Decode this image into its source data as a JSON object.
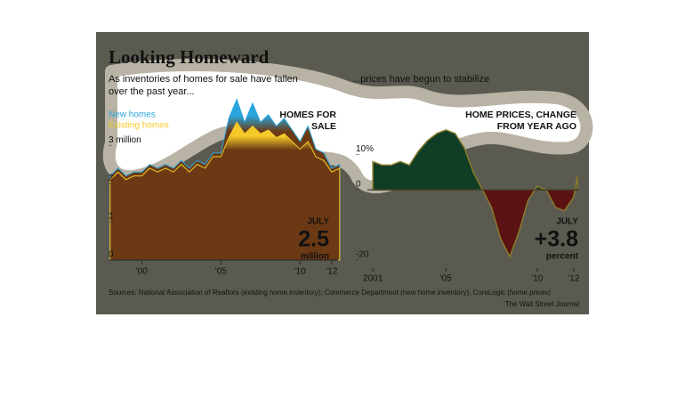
{
  "header": {
    "title": "Looking Homeward",
    "subtitle_left": [
      "As inventories of homes for sale have fallen",
      "over the past year..."
    ],
    "subtitle_right": "...prices have begun to stabilize"
  },
  "chart_data": [
    {
      "type": "area",
      "title_lines": [
        "HOMES FOR",
        "SALE"
      ],
      "x": [
        1998,
        1998.5,
        1999,
        1999.5,
        2000,
        2000.5,
        2001,
        2001.5,
        2002,
        2002.5,
        2003,
        2003.5,
        2004,
        2004.5,
        2005,
        2005.5,
        2006,
        2006.5,
        2007,
        2007.5,
        2008,
        2008.5,
        2009,
        2009.5,
        2010,
        2010.5,
        2011,
        2011.5,
        2012,
        2012.5
      ],
      "series": [
        {
          "name": "New homes",
          "color": "#2aa6de",
          "values": [
            2.2,
            2.4,
            2.2,
            2.3,
            2.3,
            2.5,
            2.4,
            2.5,
            2.4,
            2.6,
            2.4,
            2.6,
            2.5,
            2.8,
            2.8,
            3.7,
            4.2,
            3.6,
            4.1,
            3.6,
            3.8,
            3.5,
            3.7,
            3.4,
            3.1,
            3.5,
            2.9,
            2.8,
            2.4,
            2.5
          ]
        },
        {
          "name": "Existing homes",
          "color": "#f6c92a",
          "values": [
            2.1,
            2.3,
            2.1,
            2.2,
            2.2,
            2.4,
            2.3,
            2.4,
            2.3,
            2.5,
            2.3,
            2.5,
            2.4,
            2.7,
            2.7,
            3.2,
            3.6,
            3.3,
            3.5,
            3.3,
            3.4,
            3.2,
            3.3,
            3.1,
            2.9,
            3.1,
            2.7,
            2.6,
            2.3,
            2.4
          ]
        }
      ],
      "xlim": [
        1997.9,
        2012.4
      ],
      "xticks": [
        {
          "value": 2000,
          "label": "'00"
        },
        {
          "value": 2005,
          "label": "'05"
        },
        {
          "value": 2010,
          "label": "'10"
        },
        {
          "value": 2012,
          "label": "'12"
        }
      ],
      "ylim": [
        0,
        4.4
      ],
      "yticks": [
        0,
        1,
        2,
        {
          "value": 3,
          "label": "3 million"
        }
      ],
      "annotation": {
        "month": "JULY",
        "value": "2.5",
        "unit": "million"
      }
    },
    {
      "type": "area",
      "title_lines": [
        "HOME PRICES, CHANGE",
        "FROM YEAR AGO"
      ],
      "x": [
        2001,
        2001.5,
        2002,
        2002.5,
        2003,
        2003.5,
        2004,
        2004.5,
        2005,
        2005.5,
        2006,
        2006.5,
        2007,
        2007.5,
        2008,
        2008.5,
        2009,
        2009.5,
        2010,
        2010.5,
        2011,
        2011.5,
        2012,
        2012.2
      ],
      "series": [
        {
          "color": "#0f3d26",
          "negative_color": "#5a1212",
          "values": [
            8,
            7,
            7,
            8,
            7,
            11,
            14,
            16,
            17,
            16,
            12,
            5,
            0,
            -5,
            -14,
            -19,
            -12,
            -3,
            1,
            0,
            -5,
            -6,
            -2,
            3.8
          ]
        }
      ],
      "xlim": [
        2000.7,
        2012.25
      ],
      "xticks": [
        2001,
        {
          "value": 2005,
          "label": "'05"
        },
        {
          "value": 2010,
          "label": "'10"
        },
        {
          "value": 2012,
          "label": "'12"
        }
      ],
      "ylim": [
        -22,
        19
      ],
      "yticks": [
        {
          "value": 10,
          "label": "10%"
        },
        0,
        -20
      ],
      "annotation": {
        "month": "JULY",
        "value": "+3.8",
        "unit": "percent"
      }
    }
  ],
  "footer": {
    "source": "Sources: National Association of Realtors (existing home inventory); Commerce Department (new home inventory); CoreLogic (home prices)",
    "credit": "The Wall Street Journal"
  }
}
